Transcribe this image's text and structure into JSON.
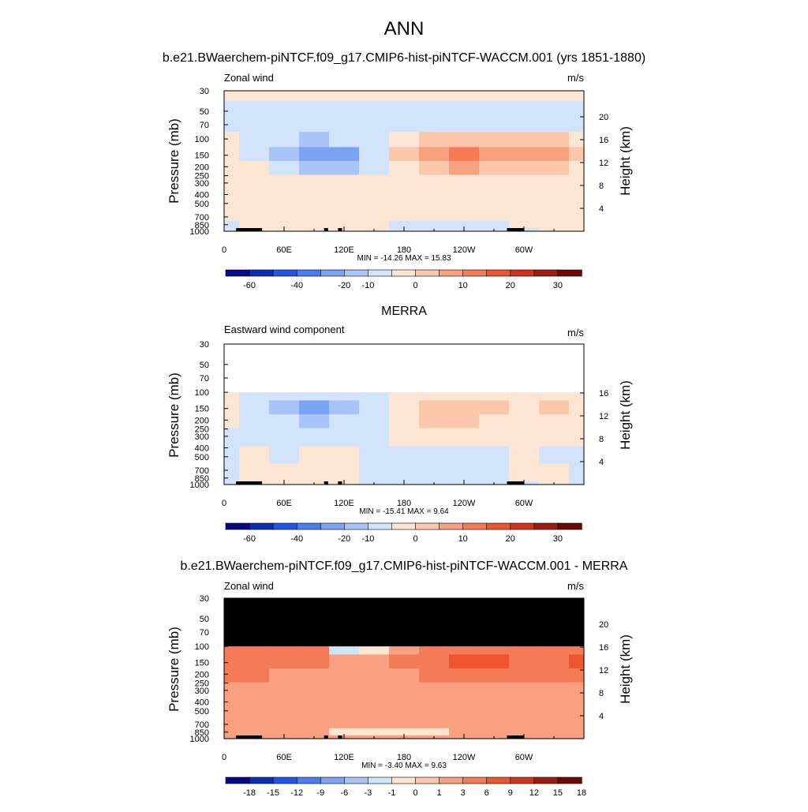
{
  "figure": {
    "title": "ANN"
  },
  "palettes": {
    "wind": [
      "#08088a",
      "#0a2fb5",
      "#2255e8",
      "#4a7df0",
      "#7aa3f4",
      "#a8c4f8",
      "#d2e4fb",
      "#fde5d3",
      "#fcc7ab",
      "#f9a080",
      "#f57b56",
      "#ec5530",
      "#d0341c",
      "#a01c10",
      "#6e0a06"
    ],
    "diff": [
      "#08088a",
      "#0a2fb5",
      "#2255e8",
      "#4a7df0",
      "#7aa3f4",
      "#a8c4f8",
      "#d2e4fb",
      "#fde5d3",
      "#fcc7ab",
      "#f9a080",
      "#f57b56",
      "#ec5530",
      "#d0341c",
      "#a01c10",
      "#6e0a06"
    ]
  },
  "chart_data": [
    {
      "type": "heatmap",
      "title": "b.e21.BWaerchem-piNTCF.f09_g17.CMIP6-hist-piNTCF-WACCM.001 (yrs 1851-1880)",
      "left_label": "Zonal wind",
      "units": "m/s",
      "xlabel": "",
      "ylabel": "Pressure (mb)",
      "y2label": "Height (km)",
      "x_ticks": [
        "0",
        "60E",
        "120E",
        "180",
        "120W",
        "60W"
      ],
      "y_ticks": [
        "30",
        "50",
        "70",
        "100",
        "150",
        "200",
        "250",
        "300",
        "400",
        "500",
        "700",
        "850",
        "1000"
      ],
      "y2_ticks": [
        "20",
        "16",
        "12",
        "8",
        "4"
      ],
      "stats": "MIN = -14.26  MAX =  15.83",
      "colorbar_labels": [
        "-60",
        "-40",
        "-20",
        "-10",
        "0",
        "10",
        "20",
        "30"
      ],
      "colorbar_label_index": [
        1,
        3,
        5,
        6,
        8,
        10,
        12,
        14
      ],
      "data_top_p": 30,
      "masked": false,
      "grid": "none",
      "lon": [
        0,
        30,
        60,
        90,
        120,
        150,
        180,
        210,
        240,
        270,
        300,
        330,
        360
      ],
      "lev": [
        30,
        50,
        70,
        100,
        150,
        200,
        300,
        500,
        700,
        850,
        1000
      ],
      "z": [
        [
          1,
          1,
          1,
          1,
          1,
          1,
          1,
          1,
          1,
          1,
          1,
          1,
          1
        ],
        [
          -1,
          -1,
          -1,
          -1,
          -1,
          -1,
          -1,
          -1,
          -1,
          -1,
          -1,
          -1,
          -1
        ],
        [
          -1,
          -1,
          -1,
          -3,
          -1,
          -1,
          -1,
          -1,
          -1,
          -1,
          -1,
          -1,
          -1
        ],
        [
          2,
          -1,
          -3,
          -5,
          -4,
          -1,
          3,
          6,
          8,
          6,
          5,
          6,
          4
        ],
        [
          2,
          -1,
          -6,
          -11,
          -12,
          -2,
          6,
          13,
          15,
          12,
          10,
          12,
          6
        ],
        [
          2,
          1,
          -1,
          -5,
          -7,
          -1,
          4,
          9,
          10,
          8,
          7,
          7,
          4
        ],
        [
          1,
          1,
          1,
          1,
          1,
          1,
          2,
          3,
          4,
          3,
          3,
          2,
          2
        ],
        [
          1,
          1,
          2,
          2,
          1,
          1,
          1,
          1,
          1,
          1,
          1,
          1,
          1
        ],
        [
          1,
          3,
          2,
          4,
          2,
          1,
          1,
          1,
          1,
          1,
          2,
          1,
          1
        ],
        [
          -1,
          2,
          2,
          4,
          3,
          1,
          -1,
          -1,
          -1,
          -1,
          3,
          2,
          1
        ],
        [
          -1,
          1,
          2,
          1,
          1,
          1,
          -1,
          -1,
          -1,
          -1,
          -1,
          1,
          1
        ]
      ]
    },
    {
      "type": "heatmap",
      "title": "MERRA",
      "left_label": "Eastward wind component",
      "units": "m/s",
      "xlabel": "",
      "ylabel": "Pressure (mb)",
      "y2label": "Height (km)",
      "x_ticks": [
        "0",
        "60E",
        "120E",
        "180",
        "120W",
        "60W"
      ],
      "y_ticks": [
        "30",
        "50",
        "70",
        "100",
        "150",
        "200",
        "250",
        "300",
        "400",
        "500",
        "700",
        "850",
        "1000"
      ],
      "y2_ticks": [
        "16",
        "12",
        "8",
        "4"
      ],
      "stats": "MIN = -15.41  MAX =   9.64",
      "colorbar_labels": [
        "-60",
        "-40",
        "-20",
        "-10",
        "0",
        "10",
        "20",
        "30"
      ],
      "colorbar_label_index": [
        1,
        3,
        5,
        6,
        8,
        10,
        12,
        14
      ],
      "data_top_p": 100,
      "masked": false,
      "grid": "none",
      "lon": [
        0,
        30,
        60,
        90,
        120,
        150,
        180,
        210,
        240,
        270,
        300,
        330,
        360
      ],
      "lev": [
        100,
        150,
        200,
        300,
        500,
        700,
        850,
        1000
      ],
      "z": [
        [
          1,
          -1,
          -2,
          -3,
          -2,
          -1,
          1,
          2,
          3,
          2,
          1,
          2,
          1
        ],
        [
          1,
          -1,
          -6,
          -12,
          -8,
          -1,
          3,
          6,
          8,
          5,
          3,
          6,
          2
        ],
        [
          1,
          -1,
          -4,
          -6,
          -4,
          -1,
          2,
          5,
          6,
          4,
          2,
          3,
          1
        ],
        [
          -1,
          -1,
          -2,
          -2,
          -1,
          -1,
          1,
          2,
          2,
          1,
          1,
          1,
          1
        ],
        [
          -1,
          1,
          -1,
          1,
          1,
          -1,
          -1,
          -1,
          -1,
          -1,
          1,
          -1,
          -1
        ],
        [
          -1,
          2,
          1,
          2,
          1,
          -1,
          -1,
          -1,
          -1,
          -1,
          1,
          1,
          -1
        ],
        [
          -1,
          2,
          2,
          1,
          1,
          -1,
          -1,
          -1,
          -1,
          -1,
          1,
          1,
          -1
        ],
        [
          -1,
          1,
          1,
          1,
          1,
          -1,
          -1,
          -1,
          -1,
          -1,
          -1,
          1,
          -1
        ]
      ]
    },
    {
      "type": "heatmap",
      "title": "b.e21.BWaerchem-piNTCF.f09_g17.CMIP6-hist-piNTCF-WACCM.001 - MERRA",
      "left_label": "Zonal wind",
      "units": "m/s",
      "xlabel": "",
      "ylabel": "Pressure (mb)",
      "y2label": "Height (km)",
      "x_ticks": [
        "0",
        "60E",
        "120E",
        "180",
        "120W",
        "60W"
      ],
      "y_ticks": [
        "30",
        "50",
        "70",
        "100",
        "150",
        "200",
        "250",
        "300",
        "400",
        "500",
        "700",
        "850",
        "1000"
      ],
      "y2_ticks": [
        "20",
        "16",
        "12",
        "8",
        "4"
      ],
      "stats": "MIN =  -3.40  MAX =   9.63",
      "colorbar_labels": [
        "-18",
        "-15",
        "-12",
        "-9",
        "-6",
        "-3",
        "-1",
        "0",
        "1",
        "3",
        "6",
        "9",
        "12",
        "15",
        "18"
      ],
      "colorbar_label_index": [
        1,
        2,
        3,
        4,
        5,
        6,
        7,
        8,
        9,
        10,
        11,
        12,
        13,
        14,
        15
      ],
      "data_top_p": 30,
      "masked": true,
      "mask_bottom_p": 100,
      "grid": "none",
      "lon": [
        0,
        30,
        60,
        90,
        120,
        150,
        180,
        210,
        240,
        270,
        300,
        330,
        360
      ],
      "lev": [
        100,
        150,
        200,
        300,
        500,
        700,
        850,
        1000
      ],
      "z": [
        [
          4,
          4,
          3,
          3,
          -2,
          -1,
          2,
          3,
          4,
          5,
          4,
          4,
          5
        ],
        [
          4,
          4,
          4,
          3,
          2,
          1,
          3,
          4,
          6,
          8,
          5,
          5,
          8
        ],
        [
          4,
          3,
          2,
          2,
          2,
          1,
          2,
          3,
          4,
          5,
          4,
          3,
          4
        ],
        [
          2,
          2,
          1,
          2,
          2,
          1,
          1,
          2,
          2,
          2,
          2,
          2,
          2
        ],
        [
          1,
          1,
          1,
          2,
          2,
          1,
          1,
          1,
          2,
          2,
          2,
          2,
          2
        ],
        [
          1,
          2,
          1,
          1,
          1,
          1,
          1,
          1,
          1,
          1,
          2,
          2,
          1
        ],
        [
          1,
          1,
          1,
          1,
          -1,
          -1,
          -1,
          -1,
          1,
          1,
          1,
          1,
          1
        ],
        [
          1,
          1,
          1,
          1,
          1,
          1,
          1,
          1,
          1,
          1,
          1,
          1,
          1
        ]
      ]
    }
  ]
}
